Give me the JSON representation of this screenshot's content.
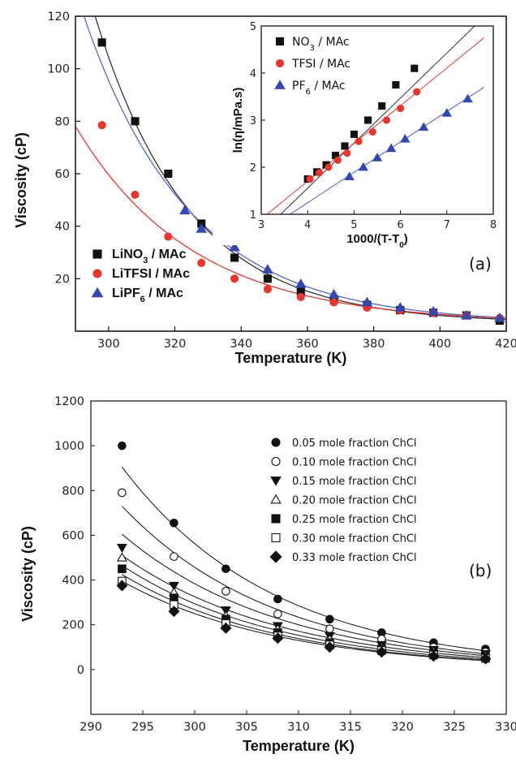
{
  "chart_data": [
    {
      "panel_label": "(a)",
      "type": "scatter",
      "xlabel": "Temperature (K)",
      "ylabel": "Viscosity (cP)",
      "xlim": [
        290,
        420
      ],
      "ylim": [
        0,
        120
      ],
      "xticks": [
        "300",
        "320",
        "340",
        "360",
        "380",
        "400",
        "420"
      ],
      "yticks": [
        "20",
        "40",
        "60",
        "80",
        "100",
        "120"
      ],
      "legend_position": "bottom-left",
      "series": [
        {
          "name": "LiNO3 / MAc",
          "name_parts": [
            "LiNO",
            "3",
            " / MAc"
          ],
          "color": "#111111",
          "marker": "square",
          "fit_color": "#333333",
          "x": [
            298,
            308,
            318,
            328,
            338,
            348,
            358,
            368,
            378,
            388,
            398,
            408,
            418
          ],
          "y": [
            110,
            80,
            60,
            41,
            28,
            20,
            15,
            12,
            10,
            8,
            7,
            6,
            4
          ]
        },
        {
          "name": "LiTFSI / MAc",
          "name_parts": [
            "LiTFSI / MAc",
            "",
            ""
          ],
          "color": "#e8362c",
          "marker": "circle",
          "fit_color": "#e8362c",
          "x": [
            298,
            308,
            318,
            328,
            338,
            348,
            358,
            368,
            378,
            388,
            398,
            408,
            418
          ],
          "y": [
            78.5,
            52,
            36,
            26,
            20,
            16,
            13,
            11,
            9,
            8,
            7,
            6,
            5
          ]
        },
        {
          "name": "LiPF6 / MAc",
          "name_parts": [
            "LiPF",
            "6",
            " / MAc"
          ],
          "color": "#3347b0",
          "marker": "triangle",
          "fit_color": "#5566cc",
          "x": [
            323,
            328,
            338,
            348,
            358,
            368,
            378,
            388,
            398,
            408,
            418
          ],
          "y": [
            46,
            39,
            32,
            23.5,
            18,
            14,
            11,
            9,
            7.5,
            6,
            5
          ]
        }
      ],
      "inset": {
        "type": "scatter",
        "xlabel": "1000/(T-T",
        "xlabel_sub": "0",
        "xlabel_end": ")",
        "ylabel": "ln(η/mPa.s)",
        "xlim": [
          3,
          8
        ],
        "ylim": [
          1,
          5
        ],
        "xticks": [
          "3",
          "4",
          "5",
          "6",
          "7",
          "8"
        ],
        "yticks": [
          "1",
          "2",
          "3",
          "4",
          "5"
        ],
        "series": [
          {
            "name": "NO3 / MAc",
            "name_parts": [
              "NO",
              "3",
              " / MAc"
            ],
            "color": "#111111",
            "marker": "square",
            "x": [
              4.0,
              4.2,
              4.4,
              4.6,
              4.8,
              5.0,
              5.3,
              5.6,
              5.9,
              6.3
            ],
            "y": [
              1.75,
              1.9,
              2.05,
              2.25,
              2.45,
              2.7,
              3.0,
              3.3,
              3.75,
              4.1
            ],
            "fit": [
              [
                3.0,
                0.6
              ],
              [
                7.6,
                5.0
              ]
            ]
          },
          {
            "name": "TFSI / MAc",
            "name_parts": [
              "TFSI / MAc",
              "",
              ""
            ],
            "color": "#e8362c",
            "marker": "circle",
            "x": [
              4.05,
              4.25,
              4.45,
              4.65,
              4.85,
              5.1,
              5.4,
              5.7,
              6.0,
              6.35
            ],
            "y": [
              1.75,
              1.88,
              2.0,
              2.15,
              2.3,
              2.55,
              2.75,
              3.0,
              3.25,
              3.6
            ],
            "fit": [
              [
                3.0,
                0.9
              ],
              [
                7.8,
                4.75
              ]
            ]
          },
          {
            "name": "PF6 / MAc",
            "name_parts": [
              "PF",
              "6",
              " / MAc"
            ],
            "color": "#3347b0",
            "marker": "triangle",
            "x": [
              4.9,
              5.2,
              5.5,
              5.8,
              6.1,
              6.5,
              7.0,
              7.45
            ],
            "y": [
              1.8,
              2.0,
              2.2,
              2.4,
              2.6,
              2.85,
              3.15,
              3.45
            ],
            "fit": [
              [
                3.0,
                0.6
              ],
              [
                7.8,
                3.7
              ]
            ]
          }
        ]
      }
    },
    {
      "panel_label": "(b)",
      "type": "scatter",
      "xlabel": "Temperature (K)",
      "ylabel": "Viscosity (cP)",
      "xlim": [
        290,
        330
      ],
      "ylim": [
        -200,
        1200
      ],
      "xticks": [
        "290",
        "295",
        "300",
        "305",
        "310",
        "315",
        "320",
        "325",
        "330"
      ],
      "yticks": [
        "0",
        "200",
        "400",
        "600",
        "800",
        "1000",
        "1200"
      ],
      "legend_position": "top-right",
      "x": [
        293,
        298,
        303,
        308,
        313,
        318,
        323,
        328
      ],
      "series": [
        {
          "name": "0.05 mole fraction ChCl",
          "marker": "circle",
          "fill": "filled",
          "y": [
            1000,
            655,
            450,
            315,
            225,
            165,
            120,
            92
          ],
          "fit_start": 905
        },
        {
          "name": "0.10 mole fraction ChCl",
          "marker": "circle",
          "fill": "open",
          "y": [
            790,
            505,
            350,
            248,
            182,
            136,
            100,
            78
          ],
          "fit_start": 730
        },
        {
          "name": "0.15 mole fraction ChCl",
          "marker": "triangle-down",
          "fill": "filled",
          "y": [
            545,
            375,
            265,
            195,
            150,
            110,
            88,
            70
          ],
          "fit_start": 605
        },
        {
          "name": "0.20 mole fraction ChCl",
          "marker": "triangle",
          "fill": "open",
          "y": [
            500,
            345,
            240,
            180,
            135,
            100,
            80,
            62
          ],
          "fit_start": 510
        },
        {
          "name": "0.25 mole fraction ChCl",
          "marker": "square",
          "fill": "filled",
          "y": [
            450,
            320,
            225,
            165,
            120,
            92,
            72,
            55
          ],
          "fit_start": 465
        },
        {
          "name": "0.30 mole fraction ChCl",
          "marker": "square",
          "fill": "open",
          "y": [
            395,
            290,
            205,
            150,
            110,
            85,
            65,
            50
          ],
          "fit_start": 425
        },
        {
          "name": "0.33 mole fraction ChCl",
          "marker": "diamond",
          "fill": "filled",
          "y": [
            375,
            260,
            185,
            140,
            100,
            78,
            60,
            48
          ],
          "fit_start": 395
        }
      ]
    }
  ]
}
